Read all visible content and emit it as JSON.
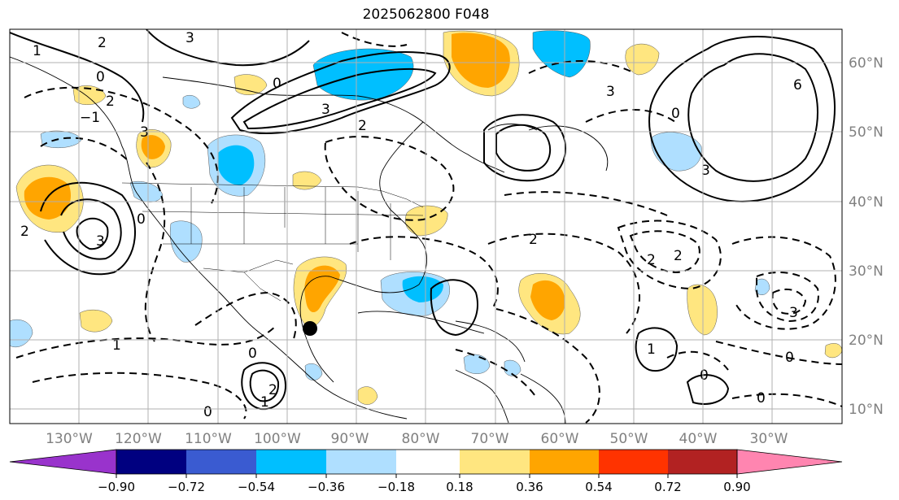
{
  "title": "2025062800 F048",
  "lon_labels": [
    "130°W",
    "120°W",
    "110°W",
    "100°W",
    "90°W",
    "80°W",
    "70°W",
    "60°W",
    "50°W",
    "40°W",
    "30°W"
  ],
  "lat_labels": [
    "60°N",
    "50°N",
    "40°N",
    "30°N",
    "20°N",
    "10°N"
  ],
  "colorbar": {
    "ticks": [
      "−0.90",
      "−0.72",
      "−0.54",
      "−0.36",
      "−0.18",
      "0.18",
      "0.36",
      "0.54",
      "0.72",
      "0.90"
    ],
    "colors": [
      "#9933cc",
      "#000080",
      "#3a5bd1",
      "#00bfff",
      "#afdfff",
      "#ffffff",
      "#ffe680",
      "#ffa500",
      "#ff3300",
      "#b22222",
      "#ff85b0"
    ]
  },
  "contour_labels": [
    "1",
    "2",
    "3",
    "0",
    "−1",
    "2",
    "3",
    "0",
    "3",
    "2",
    "1",
    "0",
    "3",
    "2",
    "2",
    "1",
    "0",
    "2",
    "2",
    "1",
    "0",
    "0",
    "3",
    "2",
    "1"
  ],
  "colors": {
    "grid": "#b0b0b0",
    "tick_text": "#808080",
    "coast": "#000000"
  }
}
